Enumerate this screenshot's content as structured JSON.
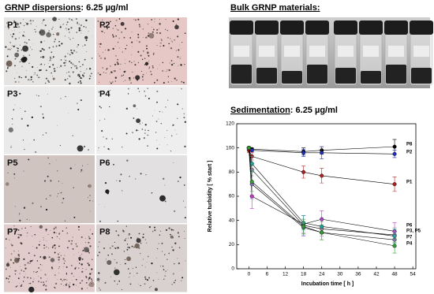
{
  "panels": {
    "left": {
      "title": "GRNP dispersions",
      "subtitle": ": 6.25 µg/ml",
      "images": [
        "P1",
        "P2",
        "P3",
        "P4",
        "P5",
        "P6",
        "P7",
        "P8"
      ]
    },
    "photo": {
      "title": "Bulk GRNP materials:"
    }
  },
  "chart_data": {
    "type": "line",
    "title": "Sedimentation",
    "subtitle": ": 6.25 µg/ml",
    "x_label": "Incubation time [ h ]",
    "y_label": "Relative turbidity [ % start ]",
    "x": [
      0,
      1,
      18,
      24,
      48
    ],
    "xlim": [
      -4,
      55
    ],
    "xticks": [
      0,
      6,
      12,
      18,
      24,
      30,
      36,
      42,
      48,
      54
    ],
    "ylim": [
      0,
      120
    ],
    "yticks": [
      0,
      20,
      40,
      60,
      80,
      100,
      120
    ],
    "series": [
      {
        "name": "P8",
        "color": "#000000",
        "values": [
          100,
          99,
          97,
          98,
          101
        ],
        "errors": [
          1,
          1,
          3,
          3,
          6
        ]
      },
      {
        "name": "P2",
        "color": "#1f2fb8",
        "values": [
          100,
          98,
          96,
          96,
          95
        ],
        "errors": [
          1,
          1,
          3,
          5,
          3
        ]
      },
      {
        "name": "P1",
        "color": "#b02020",
        "values": [
          98,
          93,
          80,
          77,
          70
        ],
        "errors": [
          2,
          3,
          5,
          6,
          6
        ]
      },
      {
        "name": "P6",
        "color": "#c030c0",
        "values": [
          100,
          60,
          37,
          41,
          31
        ],
        "errors": [
          1,
          10,
          7,
          7,
          7
        ]
      },
      {
        "color": "#909090",
        "values": [
          100,
          82,
          36,
          33,
          28
        ],
        "errors": [
          1,
          5,
          8,
          6,
          6
        ]
      },
      {
        "color": "#20a8a0",
        "values": [
          100,
          87,
          38,
          35,
          27
        ],
        "errors": [
          1,
          6,
          6,
          6,
          6
        ]
      },
      {
        "name": "P7",
        "color": "#8a70c8",
        "values": [
          100,
          70,
          34,
          30,
          24
        ],
        "errors": [
          1,
          12,
          7,
          6,
          6
        ]
      },
      {
        "name": "P4",
        "color": "#30a030",
        "values": [
          100,
          72,
          35,
          30,
          19
        ],
        "errors": [
          1,
          8,
          6,
          6,
          6
        ]
      }
    ],
    "annotations": [
      {
        "text": "P3, P5"
      }
    ]
  }
}
